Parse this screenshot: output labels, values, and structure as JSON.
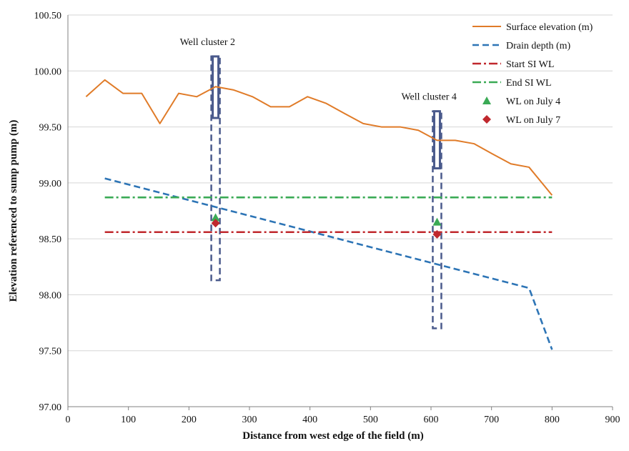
{
  "chart_data": {
    "type": "line",
    "xlabel": "Distance from west edge of the field (m)",
    "ylabel": "Elevation referenced to sump pump (m)",
    "xlim": [
      0,
      900
    ],
    "ylim": [
      97.0,
      100.5
    ],
    "x_ticks": [
      "0",
      "100",
      "200",
      "300",
      "400",
      "500",
      "600",
      "700",
      "800",
      "900"
    ],
    "y_ticks": [
      "97.00",
      "97.50",
      "98.00",
      "98.50",
      "99.00",
      "99.50",
      "100.00",
      "100.50"
    ],
    "grid": "horizontal",
    "legend_position": "top-right",
    "series": [
      {
        "name": "Surface elevation (m)",
        "color": "#E07B28",
        "style": "solid",
        "x": [
          30,
          61,
          91,
          122,
          152,
          183,
          213,
          244,
          274,
          305,
          335,
          366,
          396,
          427,
          457,
          488,
          518,
          549,
          579,
          610,
          640,
          671,
          701,
          732,
          762,
          800
        ],
        "y": [
          99.77,
          99.92,
          99.8,
          99.8,
          99.53,
          99.8,
          99.77,
          99.86,
          99.83,
          99.77,
          99.68,
          99.68,
          99.77,
          99.71,
          99.62,
          99.53,
          99.5,
          99.5,
          99.47,
          99.38,
          99.38,
          99.35,
          99.26,
          99.17,
          99.14,
          98.89
        ]
      },
      {
        "name": "Drain depth (m)",
        "color": "#2E75B6",
        "style": "dash",
        "x": [
          61,
          762,
          800
        ],
        "y": [
          99.04,
          98.06,
          97.51
        ]
      },
      {
        "name": "Start SI WL",
        "color": "#C0282D",
        "style": "dashdot",
        "x": [
          61,
          800
        ],
        "y": [
          98.56,
          98.56
        ]
      },
      {
        "name": "End SI WL",
        "color": "#3AAA55",
        "style": "dashdot",
        "x": [
          61,
          800
        ],
        "y": [
          98.87,
          98.87
        ]
      },
      {
        "name": "WL on July 4",
        "color": "#3AAA55",
        "style": "marker-triangle",
        "x": [
          244,
          610
        ],
        "y": [
          98.69,
          98.65
        ]
      },
      {
        "name": "WL on July 7",
        "color": "#C0282D",
        "style": "marker-diamond",
        "x": [
          244,
          610
        ],
        "y": [
          98.64,
          98.54
        ]
      }
    ],
    "wells": [
      {
        "label": "Well cluster 2",
        "x": 244,
        "top": 100.13,
        "screen_bottom": 99.58,
        "pipe_bottom": 98.13
      },
      {
        "label": "Well cluster 4",
        "x": 610,
        "top": 99.64,
        "screen_bottom": 99.13,
        "pipe_bottom": 97.7
      }
    ]
  }
}
